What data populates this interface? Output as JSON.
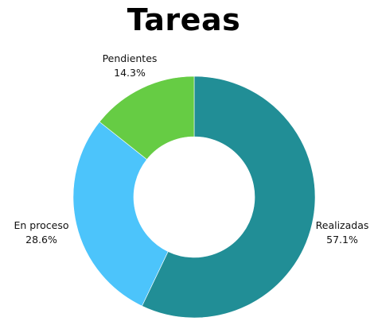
{
  "chart_data": {
    "type": "pie",
    "title": "Tareas",
    "donut": true,
    "categories": [
      "Realizadas",
      "En proceso",
      "Pendientes"
    ],
    "values": [
      57.1,
      28.6,
      14.3
    ],
    "value_labels": [
      "57.1%",
      "28.6%",
      "14.3%"
    ],
    "colors": [
      "#218e96",
      "#4cc4fb",
      "#66cc44"
    ],
    "start": "top",
    "direction": "clockwise",
    "labels_position": "outside"
  }
}
